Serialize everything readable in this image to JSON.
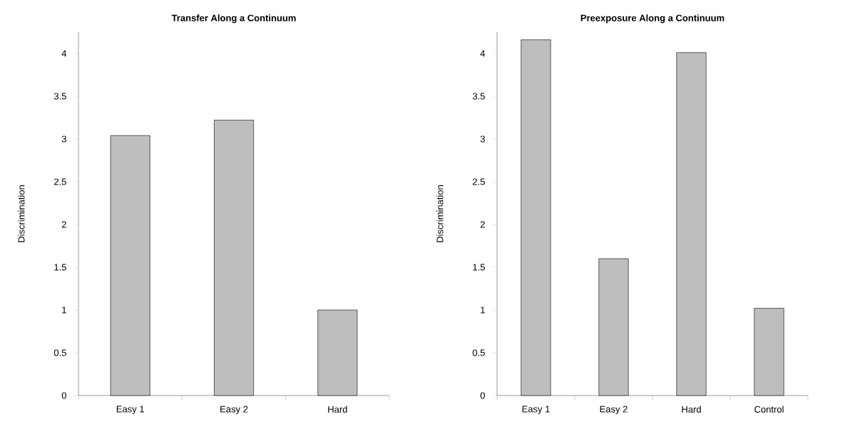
{
  "chart_data": [
    {
      "type": "bar",
      "title": "Transfer Along a Continuum",
      "ylabel": "Discrimination",
      "categories": [
        "Easy 1",
        "Easy 2",
        "Hard"
      ],
      "values": [
        3.04,
        3.22,
        1.0
      ],
      "color": "#bebebe",
      "ylim": [
        0,
        4.25
      ],
      "yticks": [
        0,
        0.5,
        1,
        1.5,
        2,
        2.5,
        3,
        3.5,
        4
      ]
    },
    {
      "type": "bar",
      "title": "Preexposure Along a Continuum",
      "ylabel": "Discrimination",
      "categories": [
        "Easy 1",
        "Easy 2",
        "Hard",
        "Control"
      ],
      "values": [
        4.16,
        1.6,
        4.01,
        1.02
      ],
      "color": "#bebebe",
      "ylim": [
        0,
        4.25
      ],
      "yticks": [
        0,
        0.5,
        1,
        1.5,
        2,
        2.5,
        3,
        3.5,
        4
      ]
    }
  ]
}
